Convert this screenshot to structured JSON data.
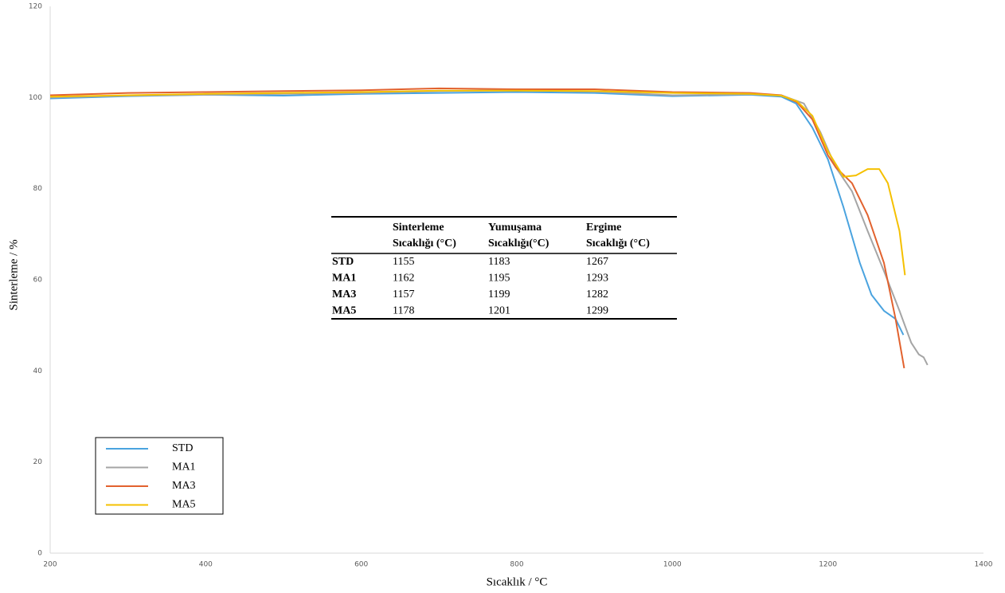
{
  "chart_data": {
    "type": "line",
    "xlabel": "Sıcaklık / °C",
    "ylabel": "Sinterleme / %",
    "xlim": [
      200,
      1400
    ],
    "xticks": [
      200,
      400,
      600,
      800,
      1000,
      1200,
      1400
    ],
    "ylim": [
      0,
      120
    ],
    "yticks": [
      0,
      20,
      40,
      60,
      80,
      100,
      120
    ],
    "grid": false,
    "legend": "lower left",
    "series": [
      {
        "name": "STD",
        "color": "#4aa3df",
        "x": [
          200,
          300,
          400,
          500,
          600,
          700,
          800,
          900,
          1000,
          1100,
          1140,
          1159,
          1180,
          1200,
          1220,
          1241,
          1256,
          1272,
          1287,
          1297
        ],
        "values": [
          99.8,
          100.3,
          100.6,
          100.4,
          100.8,
          101,
          101.2,
          101,
          100.3,
          100.6,
          100.2,
          98.7,
          93.4,
          86.4,
          75.9,
          63.7,
          56.7,
          53.2,
          51.4,
          47.9
        ]
      },
      {
        "name": "MA1",
        "color": "#a5a5a5",
        "x": [
          200,
          300,
          400,
          500,
          600,
          700,
          800,
          900,
          1000,
          1100,
          1140,
          1169,
          1190,
          1210,
          1231,
          1251,
          1272,
          1292,
          1307,
          1317,
          1323,
          1328
        ],
        "values": [
          100,
          100.4,
          100.6,
          100.8,
          101,
          101.4,
          101.6,
          101.3,
          100.5,
          100.7,
          100.5,
          98.7,
          92.5,
          84.7,
          79.4,
          70.7,
          61.9,
          53.2,
          46.2,
          43.6,
          43,
          41.3
        ]
      },
      {
        "name": "MA3",
        "color": "#e2622e",
        "x": [
          200,
          300,
          400,
          500,
          600,
          700,
          800,
          900,
          1000,
          1100,
          1140,
          1160,
          1180,
          1200,
          1210,
          1231,
          1251,
          1272,
          1287,
          1298
        ],
        "values": [
          100.5,
          101,
          101.2,
          101.4,
          101.6,
          102,
          101.8,
          101.8,
          101.2,
          101,
          100.5,
          99,
          95.2,
          87.3,
          84.7,
          81.2,
          74.2,
          63.7,
          51.4,
          40.6
        ]
      },
      {
        "name": "MA5",
        "color": "#f5c000",
        "x": [
          200,
          300,
          400,
          500,
          600,
          700,
          800,
          900,
          1000,
          1100,
          1140,
          1160,
          1180,
          1200,
          1220,
          1236,
          1251,
          1266,
          1277,
          1292,
          1299
        ],
        "values": [
          100.2,
          100.5,
          100.8,
          101,
          101.2,
          101.5,
          101.5,
          101.4,
          101,
          100.8,
          100.4,
          99.2,
          96,
          88.2,
          82.6,
          82.9,
          84.3,
          84.3,
          81.2,
          70.7,
          61
        ]
      }
    ]
  },
  "table": {
    "header": [
      [
        "Sinterleme",
        "Sıcaklığı (°C)"
      ],
      [
        "Yumuşama",
        "Sıcaklığı(°C)"
      ],
      [
        "Ergime",
        "Sıcaklığı (°C)"
      ]
    ],
    "rows": [
      [
        "STD",
        1155,
        1183,
        1267
      ],
      [
        "MA1",
        1162,
        1195,
        1293
      ],
      [
        "MA3",
        1157,
        1199,
        1282
      ],
      [
        "MA5",
        1178,
        1201,
        1299
      ]
    ]
  }
}
